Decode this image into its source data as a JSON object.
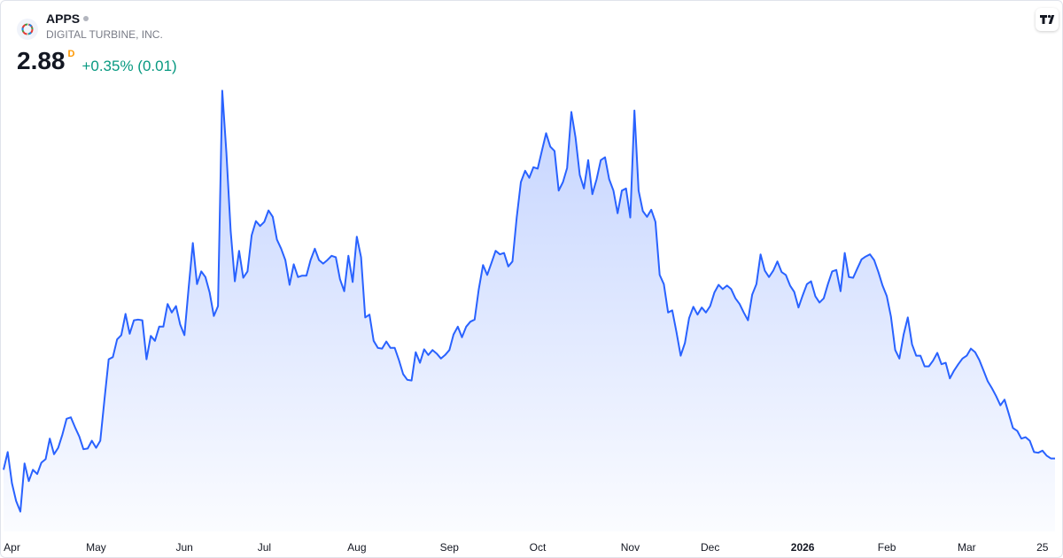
{
  "chart_data": {
    "type": "area",
    "symbol": "APPS",
    "company": "DIGITAL TURBINE, INC.",
    "last_price": 2.88,
    "interval": "D",
    "change": "+0.35% (0.01)",
    "color": "#2962ff",
    "ylim": [
      1.85,
      8.2
    ],
    "xticks": [
      {
        "value": 2,
        "label": "Apr"
      },
      {
        "value": 22,
        "label": "May"
      },
      {
        "value": 43,
        "label": "Jun"
      },
      {
        "value": 62,
        "label": "Jul"
      },
      {
        "value": 84,
        "label": "Aug"
      },
      {
        "value": 106,
        "label": "Sep"
      },
      {
        "value": 127,
        "label": "Oct"
      },
      {
        "value": 149,
        "label": "Nov"
      },
      {
        "value": 168,
        "label": "Dec"
      },
      {
        "value": 190,
        "label": "2026"
      },
      {
        "value": 210,
        "label": "Feb"
      },
      {
        "value": 229,
        "label": "Mar"
      },
      {
        "value": 247,
        "label": "25"
      }
    ],
    "values": [
      2.72,
      2.97,
      2.53,
      2.28,
      2.13,
      2.81,
      2.56,
      2.72,
      2.66,
      2.82,
      2.87,
      3.16,
      2.94,
      3.03,
      3.22,
      3.44,
      3.46,
      3.32,
      3.19,
      3.01,
      3.02,
      3.13,
      3.03,
      3.13,
      3.72,
      4.28,
      4.31,
      4.56,
      4.62,
      4.92,
      4.64,
      4.83,
      4.84,
      4.83,
      4.28,
      4.61,
      4.54,
      4.74,
      4.74,
      5.06,
      4.94,
      5.03,
      4.77,
      4.62,
      5.28,
      5.92,
      5.34,
      5.52,
      5.44,
      5.22,
      4.89,
      5.03,
      8.07,
      7.19,
      6.09,
      5.38,
      5.81,
      5.43,
      5.52,
      6.03,
      6.23,
      6.16,
      6.22,
      6.38,
      6.29,
      5.97,
      5.84,
      5.68,
      5.33,
      5.62,
      5.44,
      5.46,
      5.46,
      5.68,
      5.84,
      5.68,
      5.63,
      5.68,
      5.74,
      5.72,
      5.41,
      5.24,
      5.74,
      5.37,
      6.01,
      5.72,
      4.87,
      4.91,
      4.54,
      4.44,
      4.43,
      4.53,
      4.44,
      4.44,
      4.27,
      4.07,
      3.99,
      3.98,
      4.38,
      4.23,
      4.42,
      4.34,
      4.41,
      4.36,
      4.29,
      4.34,
      4.41,
      4.63,
      4.74,
      4.59,
      4.74,
      4.81,
      4.84,
      5.27,
      5.61,
      5.47,
      5.64,
      5.81,
      5.76,
      5.78,
      5.59,
      5.66,
      6.28,
      6.78,
      6.94,
      6.84,
      6.99,
      6.97,
      7.22,
      7.47,
      7.28,
      7.22,
      6.66,
      6.78,
      6.98,
      7.77,
      7.41,
      6.88,
      6.69,
      7.09,
      6.61,
      6.82,
      7.09,
      7.13,
      6.82,
      6.66,
      6.34,
      6.66,
      6.69,
      6.28,
      7.79,
      6.66,
      6.37,
      6.29,
      6.39,
      6.22,
      5.47,
      5.34,
      4.94,
      4.97,
      4.66,
      4.33,
      4.51,
      4.86,
      5.02,
      4.91,
      5.01,
      4.94,
      5.03,
      5.22,
      5.33,
      5.27,
      5.32,
      5.27,
      5.14,
      5.06,
      4.94,
      4.83,
      5.19,
      5.34,
      5.76,
      5.53,
      5.44,
      5.53,
      5.66,
      5.51,
      5.47,
      5.32,
      5.23,
      5.01,
      5.18,
      5.34,
      5.38,
      5.17,
      5.08,
      5.14,
      5.34,
      5.52,
      5.54,
      5.24,
      5.78,
      5.44,
      5.43,
      5.56,
      5.69,
      5.73,
      5.76,
      5.68,
      5.51,
      5.32,
      5.17,
      4.88,
      4.41,
      4.29,
      4.63,
      4.87,
      4.49,
      4.33,
      4.33,
      4.18,
      4.18,
      4.26,
      4.37,
      4.21,
      4.23,
      4.01,
      4.12,
      4.21,
      4.29,
      4.33,
      4.43,
      4.38,
      4.27,
      4.12,
      3.97,
      3.87,
      3.76,
      3.63,
      3.71,
      3.51,
      3.31,
      3.27,
      3.16,
      3.18,
      3.13,
      2.97,
      2.96,
      2.99,
      2.92,
      2.88,
      2.88
    ]
  }
}
